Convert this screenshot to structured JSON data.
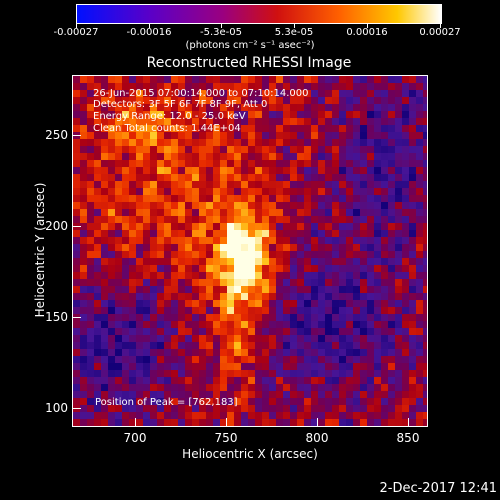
{
  "colorbar": {
    "tick_labels": [
      "-0.00027",
      "-0.00016",
      "-5.3e-05",
      "5.3e-05",
      "0.00016",
      "0.00027"
    ],
    "units": "(photons cm⁻² s⁻¹ asec⁻²)",
    "colors": [
      "#0010ff",
      "#5a00c8",
      "#9a0080",
      "#d01010",
      "#ff6000",
      "#ffc800",
      "#ffffff"
    ]
  },
  "plot": {
    "title": "Reconstructed RHESSI Image",
    "annotations": {
      "time_range": "26-Jun-2015 07:00:14.000 to 07:10:14.000",
      "detectors": "Detectors: 3F 5F 6F 7F 8F 9F, Att 0",
      "energy_range": "Energy Range: 12.0 - 25.0 keV",
      "algorithm": "Clean     Total counts: 1.44E+04",
      "peak_position": "Position of Peak = [762,183]"
    },
    "xlabel": "Heliocentric X (arcsec)",
    "ylabel": "Heliocentric Y (arcsec)",
    "x_ticks": [
      "700",
      "750",
      "800",
      "850"
    ],
    "y_ticks": [
      "100",
      "150",
      "200",
      "250"
    ]
  },
  "footer": {
    "timestamp": "2-Dec-2017 12:41"
  },
  "chart_data": {
    "type": "heatmap",
    "title": "Reconstructed RHESSI Image",
    "xlabel": "Heliocentric X (arcsec)",
    "ylabel": "Heliocentric Y (arcsec)",
    "xlim": [
      666,
      860
    ],
    "ylim": [
      92,
      283
    ],
    "x_ticks": [
      700,
      750,
      800,
      850
    ],
    "y_ticks": [
      100,
      150,
      200,
      250
    ],
    "peak": {
      "x": 762,
      "y": 183
    },
    "colorscale_range": [
      -0.00027,
      0.00027
    ],
    "colorscale_ticks": [
      -0.00027,
      -0.00016,
      -5.3e-05,
      5.3e-05,
      0.00016,
      0.00027
    ],
    "colorscale_units": "(photons cm⁻² s⁻¹ asec⁻²)"
  }
}
